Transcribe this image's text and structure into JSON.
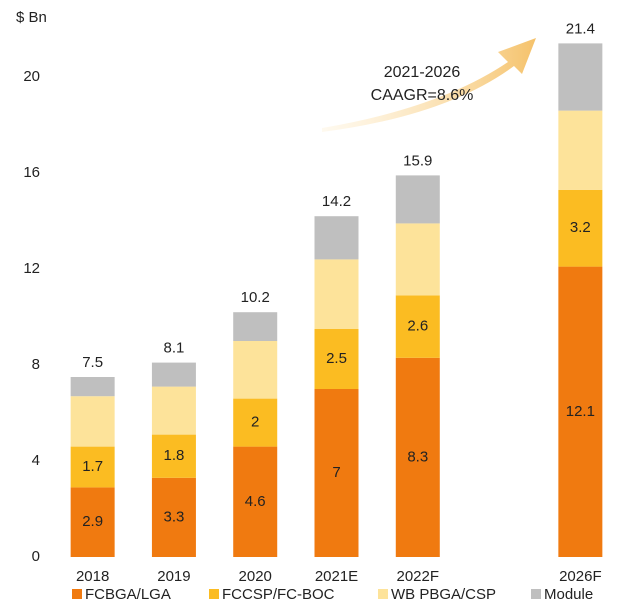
{
  "chart_data": {
    "type": "stacked_bar",
    "y_axis_label": "$ Bn",
    "annotation": [
      "2021-2026",
      "CAAGR=8.6%"
    ],
    "categories": [
      "2018",
      "2019",
      "2020",
      "2021E",
      "2022F",
      null,
      "2026F"
    ],
    "series": [
      {
        "name": "FCBGA/LGA",
        "color": "#f07a10",
        "show_labels": true,
        "values": [
          2.9,
          3.3,
          4.6,
          7,
          8.3,
          null,
          12.1
        ]
      },
      {
        "name": "FCCSP/FC-BOC",
        "color": "#fbbc22",
        "show_labels": true,
        "values": [
          1.7,
          1.8,
          2,
          2.5,
          2.6,
          null,
          3.2
        ]
      },
      {
        "name": "WB PBGA/CSP",
        "color": "#fde39a",
        "show_labels": false,
        "values": [
          2.1,
          2.0,
          2.4,
          2.9,
          3.0,
          null,
          3.3
        ]
      },
      {
        "name": "Module",
        "color": "#bfbfbf",
        "show_labels": false,
        "values": [
          0.8,
          1.0,
          1.2,
          1.8,
          2.0,
          null,
          2.8
        ]
      }
    ],
    "totals": [
      7.5,
      8.1,
      10.2,
      14.2,
      15.9,
      null,
      21.4
    ],
    "ylim": [
      0,
      22
    ],
    "yticks": [
      0,
      4,
      8,
      12,
      16,
      20
    ],
    "grid": false,
    "legend": "bottom"
  }
}
